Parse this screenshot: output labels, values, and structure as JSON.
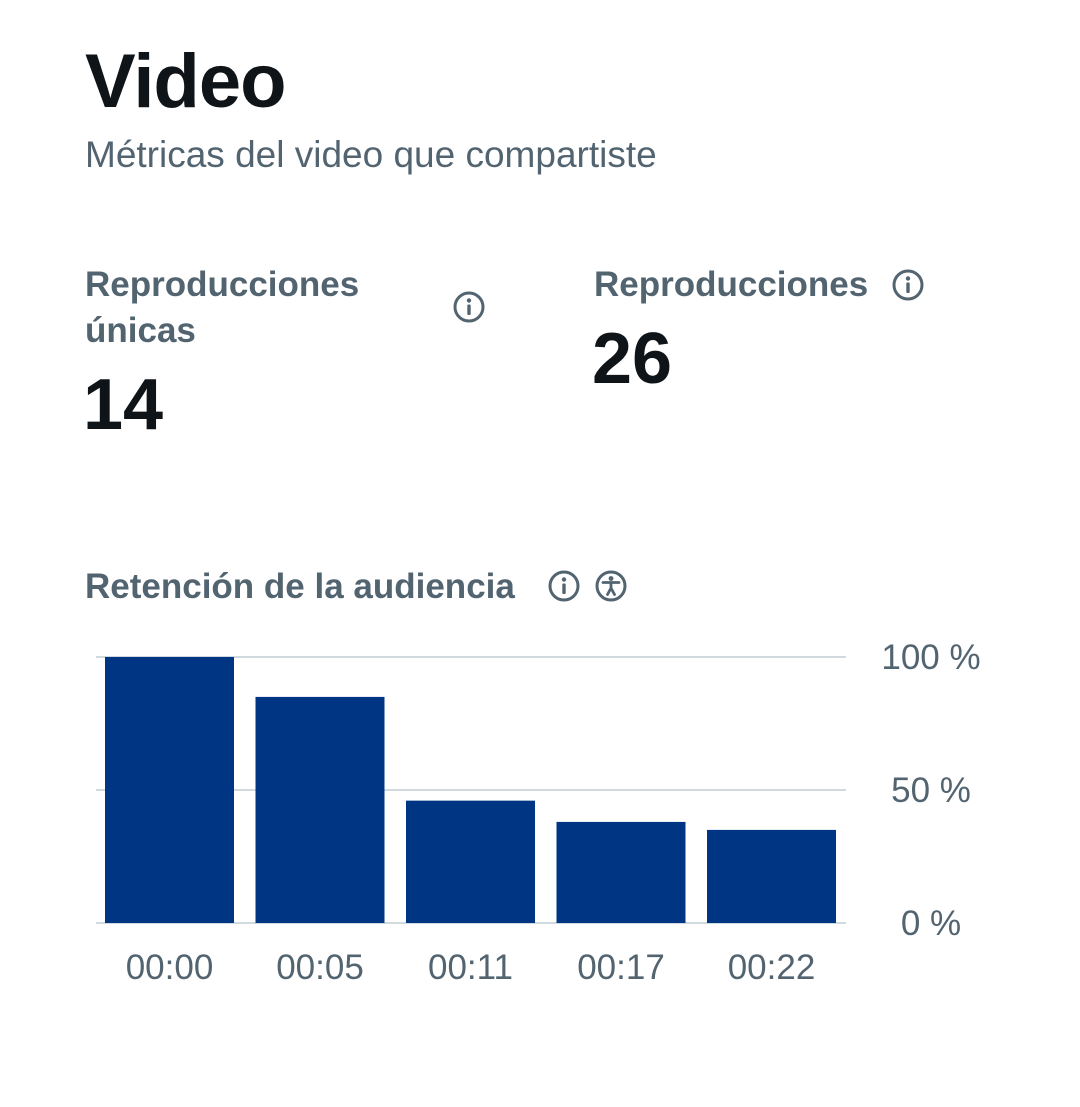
{
  "header": {
    "title": "Video",
    "subtitle": "Métricas del video que compartiste"
  },
  "metrics": {
    "unique_views": {
      "label_line1": "Reproducciones",
      "label_line2": "únicas",
      "value": "14",
      "icon": "info-icon"
    },
    "views": {
      "label": "Reproducciones",
      "value": "26",
      "icon": "info-icon"
    }
  },
  "retention": {
    "label": "Retención de la audiencia",
    "icons": [
      "info-icon",
      "accessibility-icon"
    ]
  },
  "colors": {
    "bar": "#003584",
    "grid": "#cfd9de",
    "muted_text": "#536471",
    "primary_text": "#0f1419"
  },
  "chart_data": {
    "type": "bar",
    "categories": [
      "00:00",
      "00:05",
      "00:11",
      "00:17",
      "00:22"
    ],
    "values": [
      100,
      85,
      46,
      38,
      35
    ],
    "y_ticks": [
      "100 %",
      "50 %",
      "0 %"
    ],
    "y_tick_values": [
      100,
      50,
      0
    ],
    "ylim": [
      0,
      100
    ],
    "grid": true
  }
}
